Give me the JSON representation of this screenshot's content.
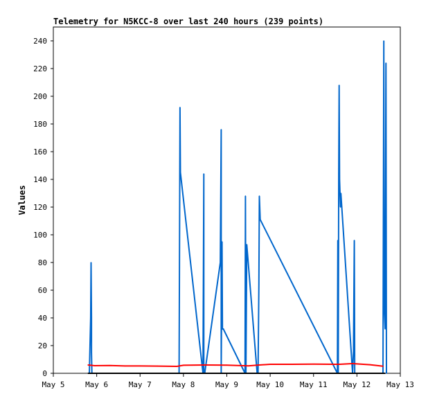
{
  "chart_data": {
    "type": "line",
    "title": "Telemetry for N5KCC-8 over last 240 hours (239 points)",
    "xlabel": "",
    "ylabel": "Values",
    "x_unit": "date (day of May)",
    "xlim": [
      5,
      13
    ],
    "ylim": [
      0,
      250
    ],
    "x_ticks": [
      5,
      6,
      7,
      8,
      9,
      10,
      11,
      12,
      13
    ],
    "x_tick_labels": [
      "May 5",
      "May 6",
      "May 7",
      "May 8",
      "May 9",
      "May 10",
      "May 11",
      "May 12",
      "May 13"
    ],
    "y_ticks": [
      0,
      20,
      40,
      60,
      80,
      100,
      120,
      140,
      160,
      180,
      200,
      220,
      240
    ],
    "grid": false,
    "series": [
      {
        "color": "#0066cc",
        "x": [
          5.83,
          5.86,
          5.87,
          5.88,
          5.88,
          5.89,
          5.9,
          7.9,
          7.92,
          7.93,
          8.45,
          8.47,
          8.47,
          8.49,
          8.85,
          8.87,
          8.87,
          8.89,
          8.9,
          8.92,
          9.42,
          9.43,
          9.44,
          9.46,
          9.7,
          9.72,
          9.74,
          9.75,
          9.77,
          11.55,
          11.56,
          11.57,
          11.58,
          11.59,
          11.6,
          11.62,
          11.63,
          11.9,
          11.92,
          11.94,
          11.95,
          11.97,
          12.6,
          12.62,
          12.63,
          12.65,
          12.67,
          12.68
        ],
        "y": [
          0,
          40,
          80,
          40,
          15,
          0,
          0,
          0,
          192,
          145,
          0,
          144,
          0,
          0,
          80,
          176,
          0,
          95,
          32,
          32,
          0,
          128,
          0,
          93,
          0,
          0,
          64,
          128,
          111,
          0,
          96,
          0,
          144,
          208,
          140,
          120,
          130,
          0,
          16,
          96,
          0,
          0,
          0,
          240,
          48,
          32,
          224,
          0
        ]
      },
      {
        "color": "#ff0000",
        "x": [
          5.8,
          5.95,
          6.3,
          6.65,
          7.0,
          7.4,
          7.85,
          8.0,
          8.5,
          9.0,
          9.5,
          9.75,
          10.0,
          10.5,
          11.0,
          11.5,
          11.6,
          11.9,
          12.3,
          12.6
        ],
        "y": [
          6,
          5.5,
          5.6,
          5.3,
          5.3,
          5.2,
          5.0,
          5.8,
          6.0,
          5.9,
          5.4,
          6.0,
          6.5,
          6.5,
          6.6,
          6.5,
          6.5,
          7.0,
          6.2,
          5.1
        ]
      },
      {
        "color": "#000000",
        "x": [
          5.8,
          12.65
        ],
        "y": [
          0,
          0
        ]
      }
    ]
  }
}
